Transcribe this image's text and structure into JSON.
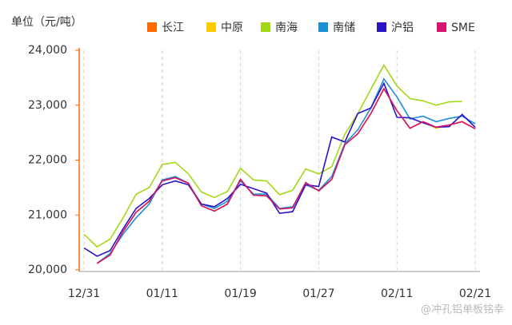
{
  "chart_data": {
    "type": "line",
    "title": "单位（元/吨）",
    "watermark": "@冲孔铝单板铭幸",
    "categories": [
      "12/31",
      null,
      null,
      null,
      null,
      null,
      "01/11",
      null,
      null,
      null,
      null,
      null,
      "01/19",
      null,
      null,
      null,
      null,
      null,
      "01/27",
      null,
      null,
      null,
      null,
      null,
      "02/11",
      null,
      null,
      null,
      null,
      null,
      "02/21"
    ],
    "ylim": [
      20000,
      24000
    ],
    "yticks": [
      {
        "value": 20000,
        "label": "20,000"
      },
      {
        "value": 21000,
        "label": "21,000"
      },
      {
        "value": 22000,
        "label": "22,000"
      },
      {
        "value": 23000,
        "label": "23,000"
      },
      {
        "value": 24000,
        "label": "24,000"
      }
    ],
    "grid": true,
    "series": [
      {
        "name": "长江",
        "color": "#ff6a00",
        "values": [
          null,
          20120,
          20270,
          20700,
          21050,
          21250,
          21620,
          21680,
          21580,
          21170,
          21070,
          21200,
          21650,
          21360,
          21350,
          21110,
          21130,
          21590,
          21440,
          21650,
          22280,
          22480,
          22850,
          23300,
          22900,
          22580,
          22700,
          22600,
          22640,
          22700,
          22570
        ]
      },
      {
        "name": "中原",
        "color": "#ffcc00",
        "values": [
          null,
          20120,
          20270,
          20700,
          21050,
          21250,
          21620,
          21680,
          21580,
          21170,
          21070,
          21200,
          21650,
          21360,
          21350,
          21110,
          21130,
          21590,
          21440,
          21650,
          22280,
          22480,
          22850,
          23300,
          22900,
          22580,
          22700,
          22580,
          22640,
          22700,
          22570
        ]
      },
      {
        "name": "南海",
        "color": "#a3d816",
        "values": [
          20650,
          20420,
          20560,
          20950,
          21380,
          21500,
          21920,
          21960,
          21750,
          21420,
          21320,
          21430,
          21850,
          21640,
          21620,
          21370,
          21450,
          21840,
          21750,
          21880,
          22470,
          22850,
          23290,
          23730,
          23350,
          23120,
          23080,
          23000,
          23060,
          23070,
          null
        ]
      },
      {
        "name": "南储",
        "color": "#1e8fd6",
        "values": [
          null,
          20120,
          20300,
          20650,
          20950,
          21200,
          21640,
          21700,
          21580,
          21200,
          21120,
          21250,
          21620,
          21380,
          21380,
          21120,
          21150,
          21550,
          21450,
          21700,
          22300,
          22550,
          22950,
          23480,
          23150,
          22750,
          22800,
          22700,
          22760,
          22800,
          22660
        ]
      },
      {
        "name": "沪铝",
        "color": "#2a14c8",
        "values": [
          20400,
          20250,
          20350,
          20750,
          21120,
          21300,
          21550,
          21620,
          21550,
          21200,
          21150,
          21300,
          21560,
          21480,
          21400,
          21030,
          21060,
          21550,
          21520,
          22420,
          22330,
          22850,
          22950,
          23400,
          22780,
          22770,
          22680,
          22600,
          22610,
          22830,
          22600
        ]
      },
      {
        "name": "SME",
        "color": "#d4146e",
        "values": [
          null,
          20120,
          20270,
          20700,
          21050,
          21250,
          21620,
          21680,
          21580,
          21170,
          21070,
          21200,
          21650,
          21360,
          21350,
          21110,
          21130,
          21590,
          21440,
          21650,
          22280,
          22480,
          22850,
          23300,
          22900,
          22580,
          22700,
          22600,
          22640,
          22700,
          22570
        ]
      }
    ]
  }
}
